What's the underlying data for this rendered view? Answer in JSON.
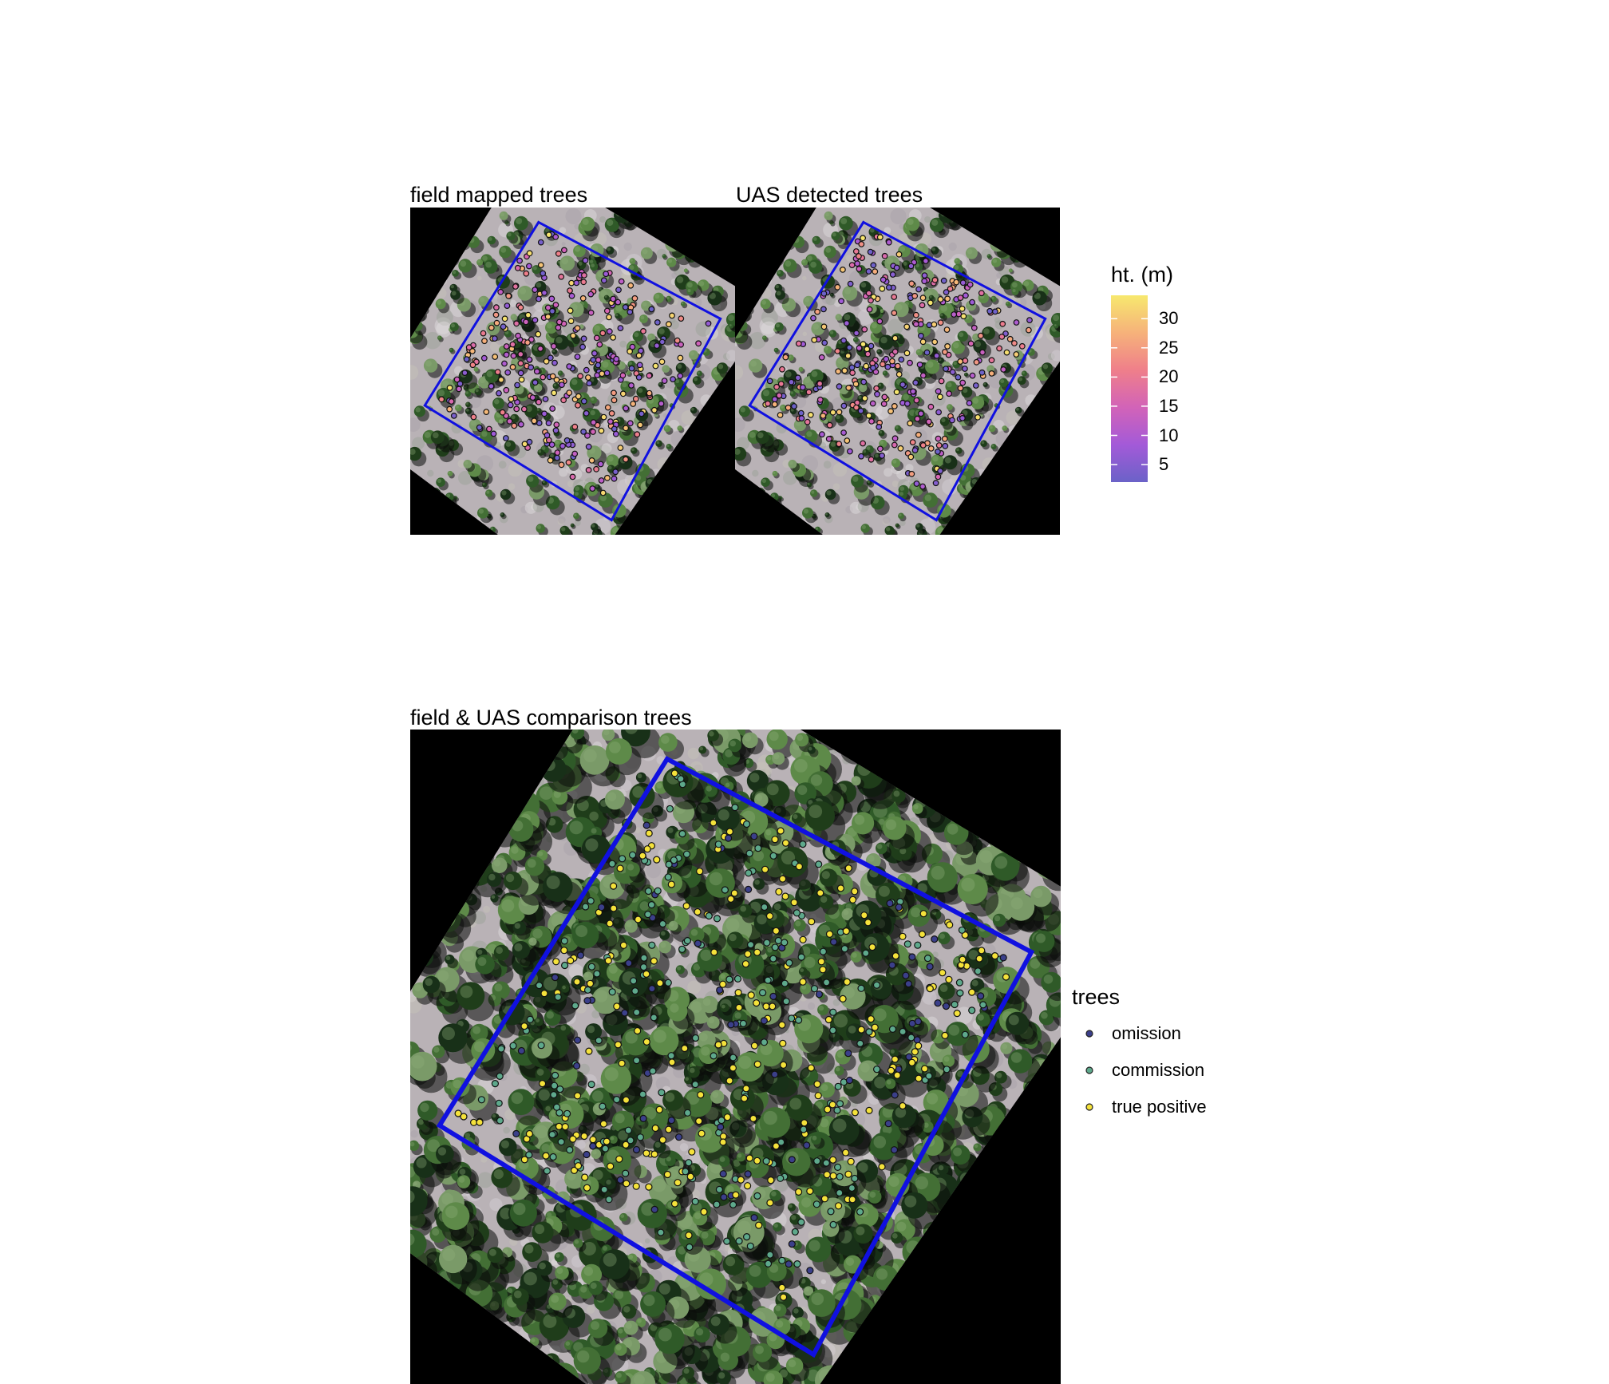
{
  "panels": {
    "field": {
      "title": "field mapped trees"
    },
    "uas": {
      "title": "UAS detected trees"
    },
    "comparison": {
      "title": "field & UAS comparison trees"
    }
  },
  "height_legend": {
    "title": "ht. (m)",
    "min": 2,
    "max": 34,
    "ticks": [
      "5",
      "10",
      "15",
      "20",
      "25",
      "30"
    ],
    "colors": [
      "#6b62c8",
      "#a35ad8",
      "#d263b8",
      "#ef7f8a",
      "#f6b27a",
      "#f7e86e"
    ]
  },
  "class_legend": {
    "title": "trees",
    "items": [
      {
        "label": "omission",
        "color": "#3b3f8a"
      },
      {
        "label": "commission",
        "color": "#5ea98c"
      },
      {
        "label": "true positive",
        "color": "#f5e23b"
      }
    ]
  },
  "plot_boundary_color": "#1010e0"
}
